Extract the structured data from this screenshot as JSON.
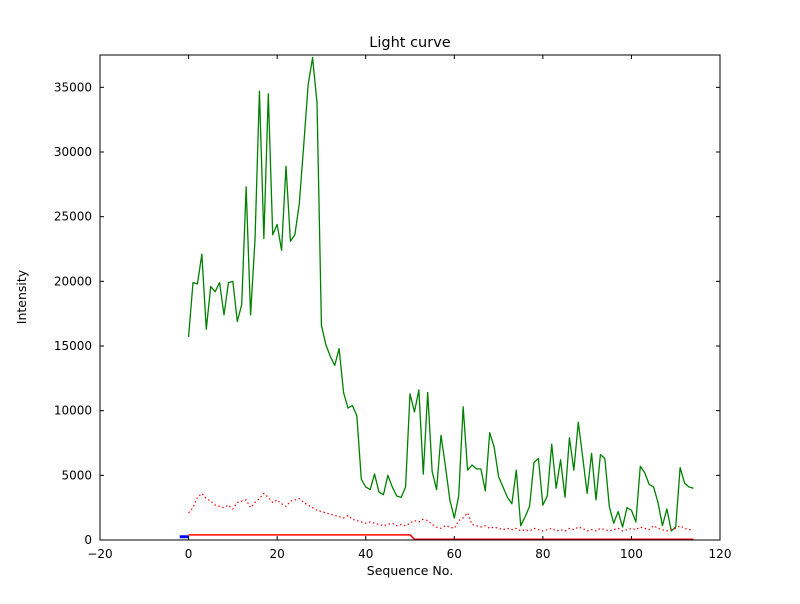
{
  "figure": {
    "background": "#ffffff",
    "frame_color": "#000000"
  },
  "chart_data": {
    "type": "line",
    "title": "Light curve",
    "xlabel": "Sequence No.",
    "ylabel": "Intensity",
    "xlim": [
      -20,
      120
    ],
    "ylim": [
      0,
      37500
    ],
    "grid": false,
    "legend": null,
    "xticks": [
      -20,
      0,
      20,
      40,
      60,
      80,
      100,
      120
    ],
    "xtick_labels": [
      "−20",
      "0",
      "20",
      "40",
      "60",
      "80",
      "100",
      "120"
    ],
    "yticks": [
      0,
      5000,
      10000,
      15000,
      20000,
      25000,
      30000,
      35000
    ],
    "ytick_labels": [
      "0",
      "5000",
      "10000",
      "15000",
      "20000",
      "25000",
      "30000",
      "35000"
    ],
    "series": [
      {
        "name": "main-light-curve",
        "color": "#008000",
        "style": "solid",
        "width": 1.3,
        "x_rule": "index",
        "y": [
          15700,
          19900,
          19800,
          22100,
          16300,
          19600,
          19200,
          19900,
          17400,
          19900,
          20000,
          16900,
          18200,
          27300,
          17400,
          23200,
          34700,
          23300,
          34500,
          23600,
          24400,
          22400,
          28900,
          23100,
          23600,
          26000,
          30500,
          35200,
          37300,
          33800,
          16600,
          15100,
          14200,
          13500,
          14800,
          11400,
          10200,
          10400,
          9600,
          4700,
          4100,
          3900,
          5100,
          3700,
          3500,
          5000,
          4100,
          3400,
          3300,
          4100,
          11300,
          9900,
          11600,
          5100,
          11400,
          5300,
          3900,
          8100,
          5700,
          3100,
          1700,
          3400,
          10300,
          5400,
          5800,
          5500,
          5500,
          3800,
          8300,
          7200,
          4900,
          4100,
          3300,
          2800,
          5400,
          1100,
          1800,
          2600,
          6000,
          6300,
          2700,
          3400,
          7400,
          4000,
          6200,
          3300,
          7900,
          5400,
          9100,
          6400,
          3600,
          6700,
          3100,
          6600,
          6300,
          2600,
          1300,
          2200,
          1000,
          2500,
          2300,
          1400,
          5700,
          5200,
          4300,
          4100,
          2900,
          1100,
          2400,
          700,
          1000,
          5600,
          4400,
          4100,
          4000
        ]
      },
      {
        "name": "background-level",
        "color": "#ff0000",
        "style": "dotted",
        "width": 1.2,
        "x_rule": "index",
        "y": [
          2100,
          2500,
          3300,
          3600,
          3200,
          3000,
          2700,
          2600,
          2500,
          2700,
          2400,
          2900,
          3000,
          3100,
          2500,
          2900,
          3200,
          3600,
          3300,
          2900,
          3100,
          2800,
          2600,
          3000,
          3100,
          3200,
          2900,
          2700,
          2500,
          2300,
          2200,
          2100,
          2000,
          1900,
          1800,
          1700,
          1900,
          1600,
          1500,
          1400,
          1300,
          1400,
          1300,
          1200,
          1100,
          1200,
          1300,
          1100,
          1200,
          1100,
          1300,
          1500,
          1400,
          1600,
          1500,
          1200,
          1000,
          900,
          1100,
          1000,
          900,
          1500,
          1700,
          2100,
          1200,
          1100,
          1000,
          1100,
          900,
          1000,
          900,
          800,
          900,
          800,
          900,
          700,
          800,
          700,
          900,
          800,
          700,
          800,
          900,
          700,
          800,
          700,
          900,
          800,
          1000,
          900,
          700,
          800,
          700,
          900,
          800,
          700,
          800,
          900,
          700,
          800,
          900,
          800,
          1000,
          900,
          800,
          1100,
          900,
          800,
          700,
          800,
          900,
          1100,
          900,
          800,
          800
        ]
      },
      {
        "name": "baseline",
        "color": "#ff0000",
        "style": "solid",
        "width": 1.5,
        "x": [
          0,
          50,
          51,
          114
        ],
        "y": [
          400,
          400,
          60,
          60
        ]
      },
      {
        "name": "start-marker",
        "color": "#0000ff",
        "style": "solid",
        "width": 3,
        "x": [
          -2,
          0
        ],
        "y": [
          250,
          250
        ]
      }
    ]
  }
}
